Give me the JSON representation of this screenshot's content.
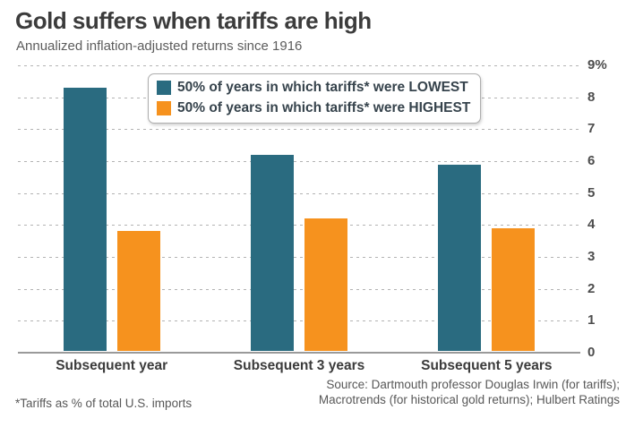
{
  "header": {
    "title": "Gold suffers when tariffs are high",
    "subtitle": "Annualized inflation-adjusted returns since 1916"
  },
  "chart_data": {
    "type": "bar",
    "title": "Gold suffers when tariffs are high",
    "subtitle": "Annualized inflation-adjusted returns since 1916",
    "categories": [
      "Subsequent year",
      "Subsequent 3 years",
      "Subsequent 5 years"
    ],
    "series": [
      {
        "name": "50% of years in which tariffs* were LOWEST",
        "color": "#2a6b80",
        "values": [
          8.3,
          6.2,
          5.9
        ]
      },
      {
        "name": "50% of years in which tariffs* were HIGHEST",
        "color": "#f6921e",
        "values": [
          3.8,
          4.2,
          3.9
        ]
      }
    ],
    "xlabel": "",
    "ylabel": "",
    "ylim": [
      0,
      9
    ],
    "yticks": [
      0,
      1,
      2,
      3,
      4,
      5,
      6,
      7,
      8,
      9
    ],
    "ytick_labels": [
      "0",
      "1",
      "2",
      "3",
      "4",
      "5",
      "6",
      "7",
      "8",
      "9%"
    ],
    "ytick_side": "right",
    "grid": "horizontal-dotted",
    "legend_position": "top-center-inside"
  },
  "footer": {
    "footnote": "*Tariffs as % of total U.S. imports",
    "source_line1": "Source: Dartmouth professor Douglas Irwin (for tariffs);",
    "source_line2": "Macrotrends (for historical gold returns); Hulbert Ratings"
  },
  "colors": {
    "lowest_bar": "#2a6b80",
    "highest_bar": "#f6921e",
    "title_text": "#3c3c3c",
    "subtitle_text": "#5c5c5c",
    "gridline": "#b3b3b3",
    "axis_line": "#9a9a9a",
    "background": "#ffffff"
  }
}
